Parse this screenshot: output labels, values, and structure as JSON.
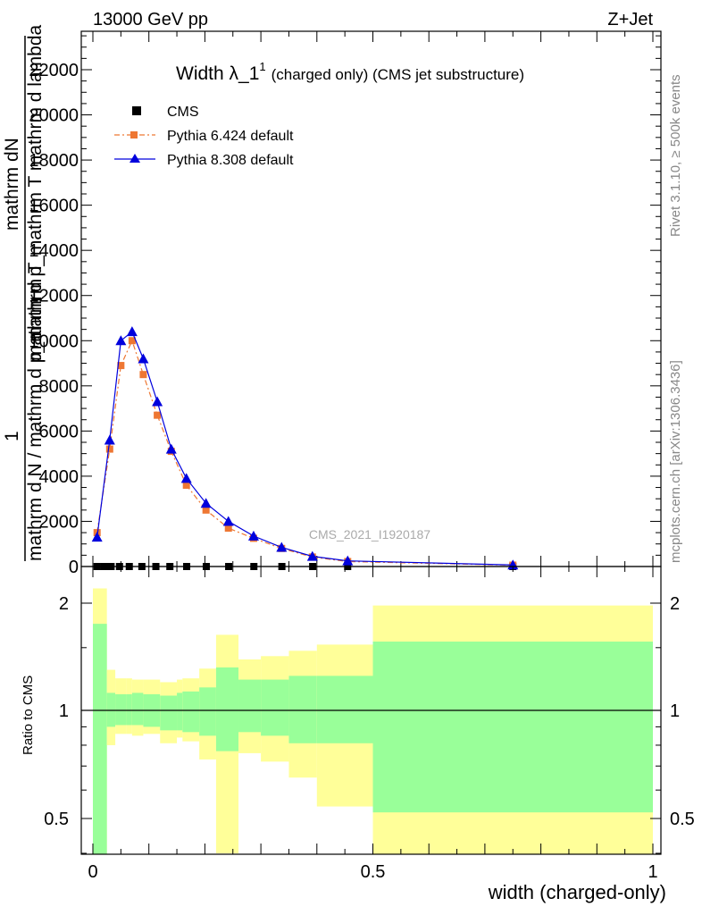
{
  "header": {
    "energy": "13000 GeV pp",
    "process": "Z+Jet"
  },
  "side": {
    "rivet": "Rivet 3.1.10, ≥ 500k events",
    "mcplots": "mcplots.cern.ch [arXiv:1306.3436]"
  },
  "ylabel_main": {
    "line1": "mathrm dN",
    "line2": "mathrm d p_mathrm T mathrm d lambda",
    "line3": "1",
    "line4": "mathrm d N / mathrm d p_mathrm T"
  },
  "ratio_ylabel": "Ratio to CMS",
  "xlabel": "width (charged-only)",
  "watermark": "CMS_2021_I1920187",
  "colors": {
    "cms": "#000000",
    "py6": "#ee7733",
    "py8": "#0000dd",
    "band_green": "#99ff99",
    "band_yellow": "#ffff99"
  },
  "chart_data": [
    {
      "type": "line",
      "title": {
        "main": "Width λ_1",
        "sup": "1",
        "rest": "(charged only) (CMS jet substructure)"
      },
      "xlim": [
        0,
        1
      ],
      "ylim": [
        0,
        23600
      ],
      "yticks": [
        "2000",
        "4000",
        "6000",
        "8000",
        "10000",
        "12000",
        "14000",
        "16000",
        "18000",
        "20000",
        "22000"
      ],
      "legend": [
        "CMS",
        "Pythia 6.424 default",
        "Pythia 8.308 default"
      ],
      "series": [
        {
          "name": "CMS",
          "marker": "square",
          "x": [
            0.0075,
            0.02,
            0.0325,
            0.0475,
            0.065,
            0.0875,
            0.1125,
            0.1375,
            0.1675,
            0.2025,
            0.2425,
            0.2875,
            0.3375,
            0.3925,
            0.455,
            0.75
          ],
          "y": [
            0,
            0,
            0,
            0,
            0,
            0,
            0,
            0,
            0,
            0,
            0,
            0,
            0,
            0,
            0,
            0
          ]
        },
        {
          "name": "Pythia 6.424 default",
          "marker": "square",
          "dash": true,
          "x": [
            0.0075,
            0.03,
            0.05,
            0.07,
            0.09,
            0.115,
            0.14,
            0.167,
            0.202,
            0.242,
            0.287,
            0.337,
            0.392,
            0.455,
            0.75
          ],
          "y": [
            1500,
            5200,
            8900,
            10000,
            8500,
            6700,
            5100,
            3600,
            2500,
            1700,
            1250,
            800,
            420,
            220,
            60
          ]
        },
        {
          "name": "Pythia 8.308 default",
          "marker": "triangle",
          "x": [
            0.0075,
            0.03,
            0.05,
            0.07,
            0.09,
            0.115,
            0.14,
            0.167,
            0.202,
            0.242,
            0.287,
            0.337,
            0.392,
            0.455,
            0.75
          ],
          "y": [
            1300,
            5600,
            10000,
            10400,
            9200,
            7300,
            5200,
            3900,
            2800,
            2000,
            1350,
            850,
            450,
            250,
            70
          ]
        }
      ]
    },
    {
      "type": "area",
      "title": "",
      "xlabel": "width (charged-only)",
      "ylabel": "Ratio to CMS",
      "xlim": [
        -0.02,
        1.01
      ],
      "ylim": [
        0.35,
        2.3
      ],
      "xticks": [
        "0",
        "0.5",
        "1"
      ],
      "yticks": [
        "0.5",
        "1",
        "2"
      ],
      "bins": [
        0,
        0.025,
        0.04,
        0.06,
        0.07,
        0.09,
        0.12,
        0.15,
        0.16,
        0.19,
        0.22,
        0.26,
        0.3,
        0.35,
        0.4,
        0.5,
        1.0
      ],
      "green_low": [
        0,
        0.9,
        0.91,
        0.91,
        0.91,
        0.9,
        0.88,
        0.88,
        0.87,
        0.85,
        0.77,
        0.87,
        0.85,
        0.81,
        0.81,
        0.52
      ],
      "green_high": [
        1.75,
        1.12,
        1.11,
        1.11,
        1.12,
        1.11,
        1.1,
        1.12,
        1.13,
        1.16,
        1.32,
        1.22,
        1.22,
        1.25,
        1.25,
        1.56
      ],
      "yellow_low": [
        0,
        0.8,
        0.86,
        0.86,
        0.85,
        0.86,
        0.81,
        0.84,
        0.82,
        0.73,
        0.4,
        0.76,
        0.72,
        0.65,
        0.54,
        0.0
      ],
      "yellow_high": [
        2.2,
        1.3,
        1.23,
        1.23,
        1.22,
        1.22,
        1.2,
        1.22,
        1.23,
        1.31,
        1.63,
        1.39,
        1.42,
        1.47,
        1.53,
        1.97
      ],
      "reference": 1
    }
  ]
}
